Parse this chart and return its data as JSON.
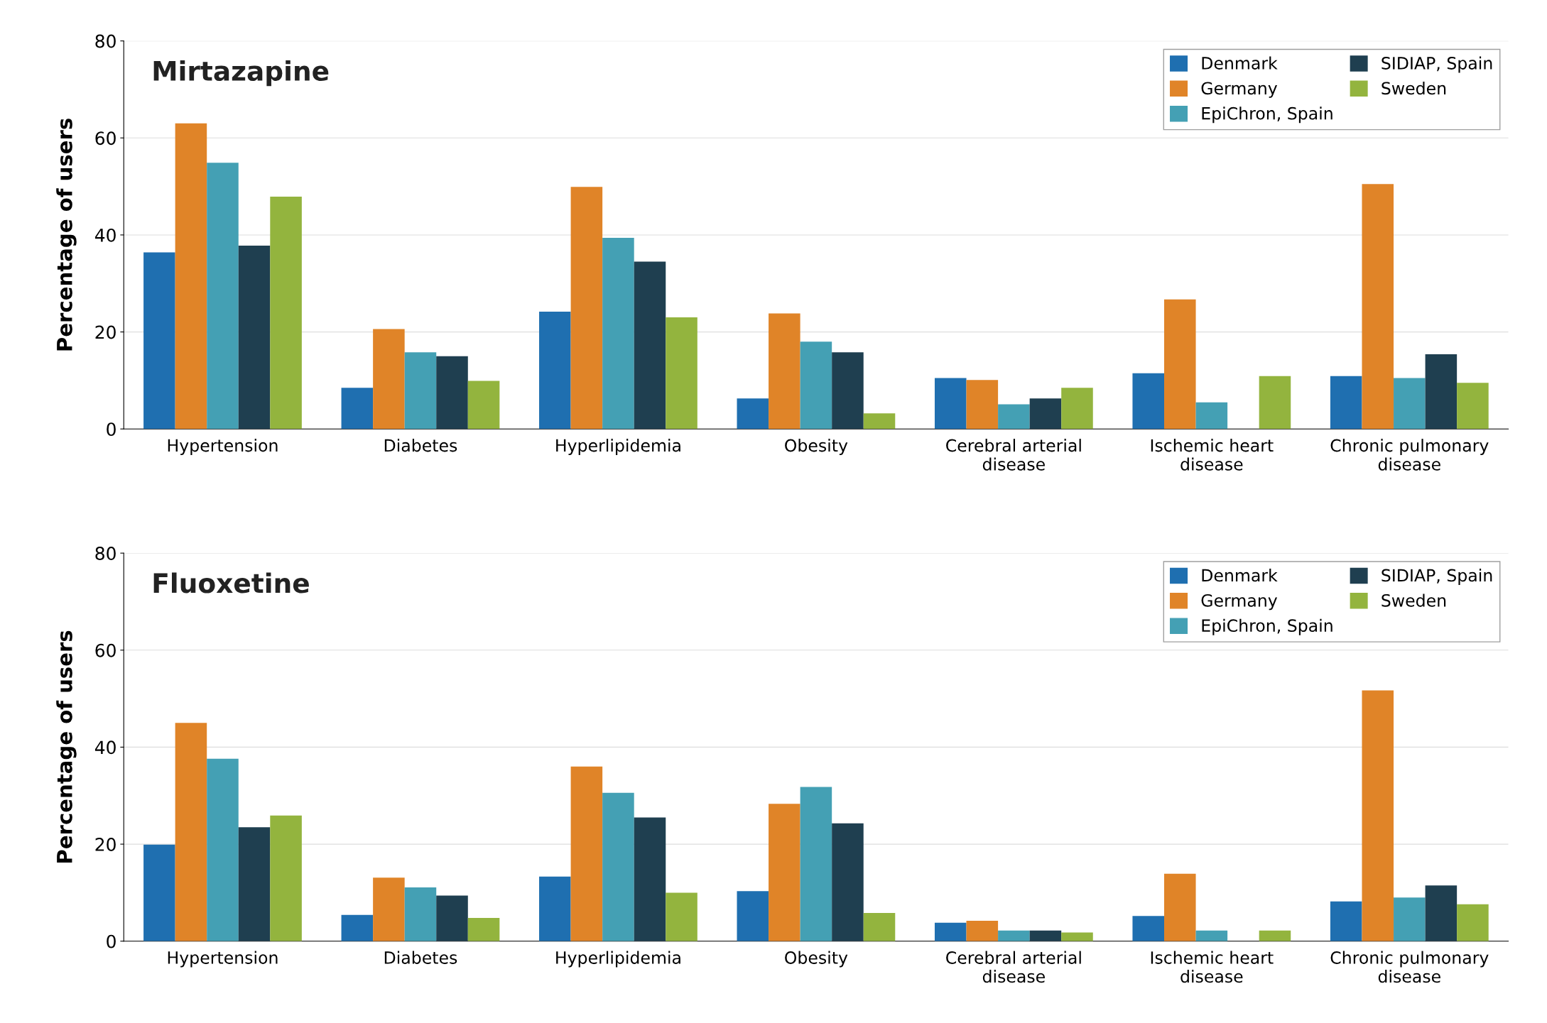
{
  "chart_data": [
    {
      "type": "bar",
      "title": "Mirtazapine",
      "ylabel": "Percentage of users",
      "categories": [
        "Hypertension",
        "Diabetes",
        "Hyperlipidemia",
        "Obesity",
        "Cerebral arterial disease",
        "Ischemic heart disease",
        "Chronic pulmonary disease"
      ],
      "series": [
        {
          "name": "Denmark",
          "color": "#1f6fb0",
          "values": [
            36.4,
            8.5,
            24.2,
            6.3,
            10.5,
            11.5,
            10.9
          ]
        },
        {
          "name": "Germany",
          "color": "#e08428",
          "values": [
            63,
            20.6,
            49.9,
            23.8,
            10.1,
            26.7,
            50.5
          ]
        },
        {
          "name": "EpiChron, Spain",
          "color": "#44a0b4",
          "values": [
            54.9,
            15.8,
            39.4,
            18,
            5.1,
            5.5,
            10.5
          ]
        },
        {
          "name": "SIDIAP, Spain",
          "color": "#1f3f50",
          "values": [
            37.8,
            15,
            34.5,
            15.8,
            6.3,
            null,
            15.4
          ]
        },
        {
          "name": "Sweden",
          "color": "#93b43e",
          "values": [
            47.9,
            9.9,
            23,
            3.2,
            8.5,
            10.9,
            9.5
          ]
        }
      ],
      "ylim": [
        0,
        80
      ],
      "yticks": [
        0,
        20,
        40,
        60,
        80
      ],
      "grid": "y",
      "legend": "top right"
    },
    {
      "type": "bar",
      "title": "Fluoxetine",
      "ylabel": "Percentage of users",
      "categories": [
        "Hypertension",
        "Diabetes",
        "Hyperlipidemia",
        "Obesity",
        "Cerebral arterial disease",
        "Ischemic heart disease",
        "Chronic pulmonary disease"
      ],
      "series": [
        {
          "name": "Denmark",
          "color": "#1f6fb0",
          "values": [
            19.9,
            5.4,
            13.3,
            10.3,
            3.8,
            5.2,
            8.2
          ]
        },
        {
          "name": "Germany",
          "color": "#e08428",
          "values": [
            45,
            13.1,
            36,
            28.3,
            4.2,
            13.9,
            51.7
          ]
        },
        {
          "name": "EpiChron, Spain",
          "color": "#44a0b4",
          "values": [
            37.6,
            11.1,
            30.6,
            31.8,
            2.2,
            2.2,
            9
          ]
        },
        {
          "name": "SIDIAP, Spain",
          "color": "#1f3f50",
          "values": [
            23.5,
            9.4,
            25.5,
            24.3,
            2.2,
            null,
            11.5
          ]
        },
        {
          "name": "Sweden",
          "color": "#93b43e",
          "values": [
            25.9,
            4.8,
            10,
            5.8,
            1.8,
            2.2,
            7.6
          ]
        }
      ],
      "ylim": [
        0,
        80
      ],
      "yticks": [
        0,
        20,
        40,
        60,
        80
      ],
      "grid": "y",
      "legend": "top right"
    }
  ]
}
